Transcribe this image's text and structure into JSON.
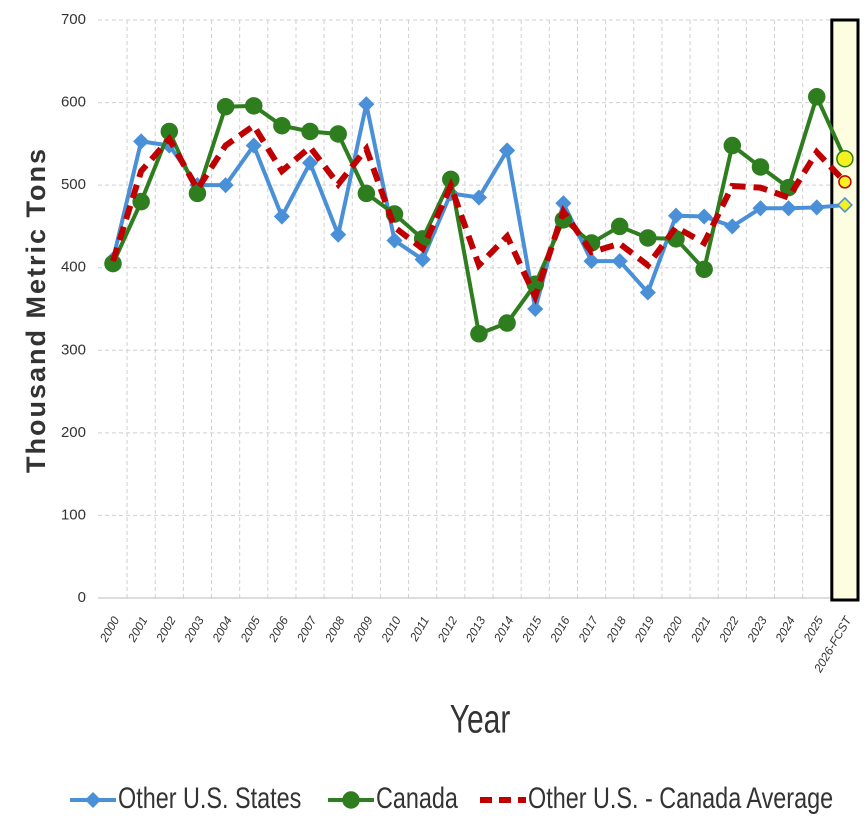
{
  "chart_data": {
    "type": "line",
    "y_label": "Thousand Metric Tons",
    "x_label": "Year",
    "categories": [
      "2000",
      "2001",
      "2002",
      "2003",
      "2004",
      "2005",
      "2006",
      "2007",
      "2008",
      "2009",
      "2010",
      "2011",
      "2012",
      "2013",
      "2014",
      "2015",
      "2016",
      "2017",
      "2018",
      "2019",
      "2020",
      "2021",
      "2022",
      "2023",
      "2024",
      "2025",
      "2026-FCST"
    ],
    "series": [
      {
        "name": "Other U.S. States",
        "color": "#4a90d9",
        "style": "solid-diamond",
        "values": [
          410,
          553,
          548,
          500,
          500,
          548,
          462,
          527,
          440,
          598,
          433,
          410,
          490,
          485,
          542,
          350,
          478,
          408,
          408,
          370,
          463,
          462,
          450,
          472,
          472,
          473,
          476
        ]
      },
      {
        "name": "Canada",
        "color": "#2e7d1f",
        "style": "solid-circle",
        "values": [
          405,
          480,
          565,
          490,
          595,
          596,
          572,
          565,
          562,
          490,
          465,
          435,
          507,
          320,
          333,
          380,
          458,
          430,
          450,
          436,
          435,
          398,
          548,
          522,
          497,
          607,
          532
        ]
      },
      {
        "name": "Other U.S. - Canada Average",
        "color": "#c00000",
        "style": "dashed",
        "values": [
          408,
          517,
          556,
          495,
          548,
          572,
          517,
          546,
          501,
          544,
          449,
          423,
          499,
          403,
          438,
          365,
          468,
          419,
          429,
          403,
          449,
          430,
          499,
          497,
          485,
          540,
          504
        ]
      }
    ],
    "ylim": [
      0,
      700
    ],
    "yticks": [
      0,
      100,
      200,
      300,
      400,
      500,
      600,
      700
    ],
    "grid": true,
    "highlight_last": true,
    "highlight_color": "#fdfde0",
    "forecast_marker_color": "#f5f020"
  }
}
